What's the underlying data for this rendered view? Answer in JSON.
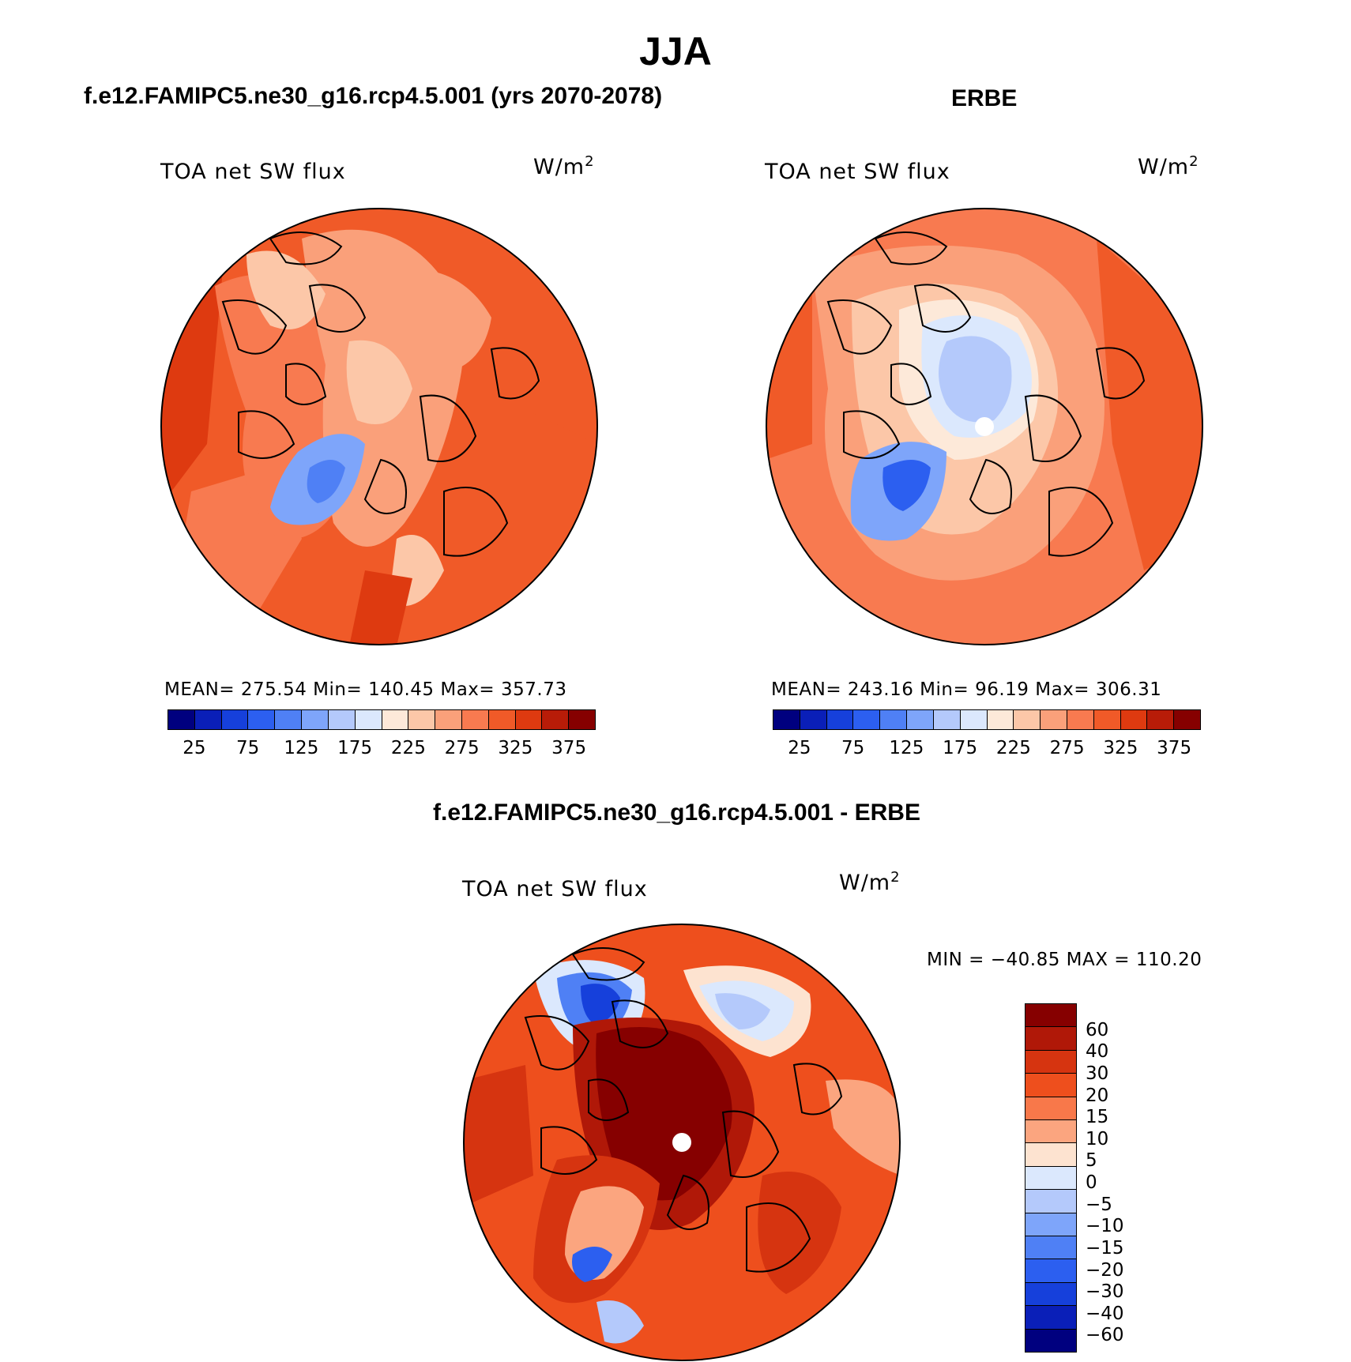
{
  "figure_title": "JJA",
  "panels": {
    "model": {
      "title": "f.e12.FAMIPC5.ne30_g16.rcp4.5.001 (yrs 2070-2078)",
      "variable": "TOA net SW flux",
      "units_base": "W/m",
      "units_exp": "2",
      "stats": "MEAN= 275.54   Min= 140.45   Max= 357.73"
    },
    "obs": {
      "title": "ERBE",
      "variable": "TOA net SW flux",
      "units_base": "W/m",
      "units_exp": "2",
      "stats": "MEAN= 243.16   Min=  96.19   Max= 306.31"
    },
    "diff": {
      "title": "f.e12.FAMIPC5.ne30_g16.rcp4.5.001 - ERBE",
      "variable": "TOA net SW flux",
      "units_base": "W/m",
      "units_exp": "2",
      "stats": "MIN = −40.85 MAX = 110.20"
    }
  },
  "colorbars": {
    "abs": {
      "colors": [
        "#00007f",
        "#0a1fb8",
        "#1640db",
        "#2c5ff0",
        "#4f80f5",
        "#7ea5fa",
        "#b4c9fb",
        "#dbe8fd",
        "#fde9d9",
        "#fcc7a8",
        "#faa07a",
        "#f87a50",
        "#f05a28",
        "#de3a10",
        "#b81c08",
        "#860000"
      ],
      "labels": [
        "25",
        "75",
        "125",
        "175",
        "225",
        "275",
        "325",
        "375"
      ]
    },
    "diff": {
      "colors": [
        "#860000",
        "#b01808",
        "#d63410",
        "#ee4f1d",
        "#f8784a",
        "#fba57f",
        "#fde3d0",
        "#dbe8fd",
        "#b4c9fb",
        "#7ea5fa",
        "#4f80f5",
        "#2c5ff0",
        "#1640db",
        "#0a1fb8",
        "#00007f"
      ],
      "labels": [
        "60",
        "40",
        "30",
        "20",
        "15",
        "10",
        "5",
        "0",
        "−5",
        "−10",
        "−15",
        "−20",
        "−30",
        "−40",
        "−60"
      ]
    }
  }
}
